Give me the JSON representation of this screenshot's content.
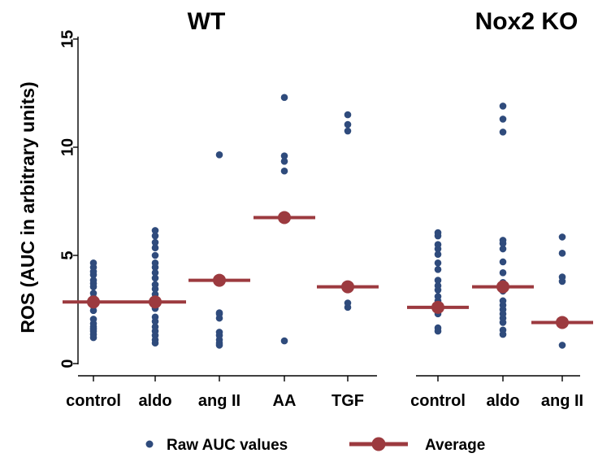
{
  "chart_data": {
    "type": "scatter",
    "ylabel": "ROS (AUC in arbitrary units)",
    "ylim": [
      0,
      15
    ],
    "yticks": [
      0,
      5,
      10,
      15
    ],
    "grid": false,
    "legend_position": "bottom",
    "raw_color": "#2f4b7c",
    "avg_color": "#9c3a3f",
    "legend": {
      "raw_label": "Raw AUC values",
      "avg_label": "Average"
    },
    "panels": [
      {
        "title": "WT",
        "categories": [
          {
            "label": "control",
            "average": 2.85,
            "raw": [
              1.2,
              1.35,
              1.5,
              1.6,
              1.7,
              1.85,
              2.05,
              2.45,
              2.65,
              2.8,
              2.95,
              3.05,
              3.25,
              3.55,
              3.7,
              3.85,
              4.1,
              4.25,
              4.45,
              4.65
            ]
          },
          {
            "label": "aldo",
            "average": 2.85,
            "raw": [
              0.95,
              1.1,
              1.3,
              1.5,
              1.7,
              1.95,
              2.15,
              2.55,
              2.75,
              2.95,
              3.2,
              3.45,
              3.65,
              3.95,
              4.2,
              4.45,
              4.65,
              5.0,
              5.35,
              5.6,
              5.9,
              6.15
            ]
          },
          {
            "label": "ang II",
            "average": 3.85,
            "raw": [
              0.85,
              0.95,
              1.1,
              1.3,
              1.45,
              2.1,
              2.3,
              2.35,
              9.65
            ]
          },
          {
            "label": "AA",
            "average": 6.75,
            "raw": [
              1.05,
              8.9,
              9.35,
              9.6,
              12.3
            ]
          },
          {
            "label": "TGF",
            "average": 3.55,
            "raw": [
              2.6,
              2.8,
              10.75,
              11.05,
              11.5
            ]
          }
        ]
      },
      {
        "title": "Nox2 KO",
        "categories": [
          {
            "label": "control",
            "average": 2.6,
            "raw": [
              1.5,
              1.65,
              2.3,
              2.5,
              2.7,
              2.9,
              3.1,
              3.4,
              3.6,
              3.85,
              4.35,
              4.65,
              5.05,
              5.3,
              5.5,
              5.9,
              6.05
            ]
          },
          {
            "label": "aldo",
            "average": 3.55,
            "raw": [
              1.35,
              1.55,
              1.9,
              2.1,
              2.3,
              2.5,
              2.7,
              2.9,
              3.35,
              3.5,
              3.75,
              4.2,
              4.7,
              5.3,
              5.55,
              5.7,
              10.7,
              11.3,
              11.9
            ]
          },
          {
            "label": "ang II",
            "average": 1.9,
            "raw": [
              0.85,
              3.8,
              4.0,
              5.1,
              5.85
            ]
          }
        ]
      }
    ]
  }
}
